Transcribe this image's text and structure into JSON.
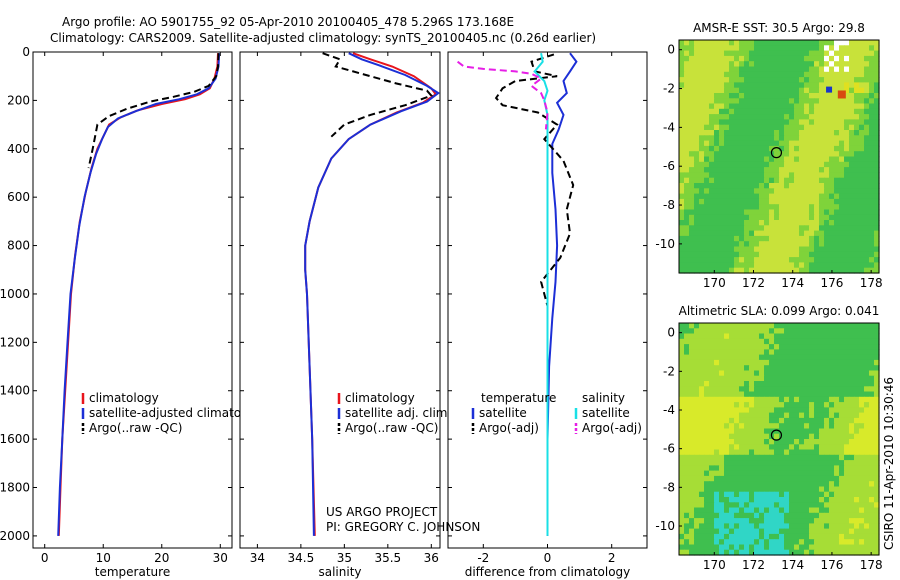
{
  "header": {
    "line1": "Argo profile: AO 5901755_92 05-Apr-2010 20100405_478 5.296S 173.168E",
    "line2": "Climatology: CARS2009. Satellite-adjusted climatology: synTS_20100405.nc (0.26d earlier)"
  },
  "footer": {
    "project": "US ARGO PROJECT",
    "pi": "PI: GREGORY C. JOHNSON",
    "stamp": "CSIRO 11-Apr-2010 10:30:46"
  },
  "colors": {
    "climatology": "#e8141c",
    "satellite": "#1c2fd6",
    "argo": "#000000",
    "sal_satellite": "#19e0e6",
    "sal_argo": "#e61ee6"
  },
  "chart_data": [
    {
      "type": "line",
      "id": "temperature",
      "xlabel": "temperature",
      "ylabel": "",
      "xlim": [
        -2,
        32
      ],
      "ylim": [
        2050,
        0
      ],
      "y_reversed": true,
      "xticks": [
        0,
        10,
        20,
        30
      ],
      "yticks": [
        0,
        200,
        400,
        600,
        800,
        1000,
        1200,
        1400,
        1600,
        1800,
        2000
      ],
      "legend": {
        "placement": "bottom-right",
        "entries": [
          "climatology",
          "satellite-adjusted climatology",
          "Argo(..raw -QC)"
        ]
      },
      "series": [
        {
          "name": "climatology",
          "color_key": "climatology",
          "dash": false,
          "points": [
            [
              29.6,
              5
            ],
            [
              29.5,
              60
            ],
            [
              29.0,
              110
            ],
            [
              28.2,
              150
            ],
            [
              26.5,
              175
            ],
            [
              24.0,
              195
            ],
            [
              20.0,
              215
            ],
            [
              16.0,
              240
            ],
            [
              13.0,
              270
            ],
            [
              11.0,
              300
            ],
            [
              10.0,
              350
            ],
            [
              9.0,
              400
            ],
            [
              8.0,
              480
            ],
            [
              7.0,
              580
            ],
            [
              6.0,
              700
            ],
            [
              5.2,
              840
            ],
            [
              4.5,
              1000
            ],
            [
              4.0,
              1200
            ],
            [
              3.5,
              1400
            ],
            [
              3.0,
              1600
            ],
            [
              2.7,
              1800
            ],
            [
              2.4,
              2000
            ]
          ]
        },
        {
          "name": "satellite-adjusted climatology",
          "color_key": "satellite",
          "dash": false,
          "points": [
            [
              29.8,
              5
            ],
            [
              29.7,
              60
            ],
            [
              29.2,
              110
            ],
            [
              28.0,
              150
            ],
            [
              26.0,
              175
            ],
            [
              23.0,
              195
            ],
            [
              19.0,
              215
            ],
            [
              15.5,
              245
            ],
            [
              12.5,
              275
            ],
            [
              10.8,
              310
            ],
            [
              9.8,
              360
            ],
            [
              8.8,
              420
            ],
            [
              7.8,
              500
            ],
            [
              6.8,
              600
            ],
            [
              5.9,
              720
            ],
            [
              5.1,
              860
            ],
            [
              4.4,
              1000
            ],
            [
              3.9,
              1200
            ],
            [
              3.4,
              1400
            ],
            [
              3.0,
              1600
            ],
            [
              2.6,
              1800
            ],
            [
              2.3,
              2000
            ]
          ]
        },
        {
          "name": "Argo(..raw -QC)",
          "color_key": "argo",
          "dash": true,
          "points": [
            [
              29.7,
              5
            ],
            [
              29.6,
              60
            ],
            [
              29.3,
              100
            ],
            [
              28.0,
              140
            ],
            [
              25.5,
              165
            ],
            [
              22.0,
              185
            ],
            [
              18.0,
              205
            ],
            [
              14.0,
              235
            ],
            [
              11.0,
              265
            ],
            [
              9.0,
              300
            ],
            [
              8.2,
              400
            ],
            [
              7.5,
              480
            ]
          ]
        }
      ]
    },
    {
      "type": "line",
      "id": "salinity",
      "xlabel": "salinity",
      "ylabel": "",
      "xlim": [
        33.8,
        36.1
      ],
      "ylim": [
        2050,
        0
      ],
      "y_reversed": true,
      "xticks": [
        34,
        34.5,
        35,
        35.5,
        36
      ],
      "legend": {
        "placement": "bottom-right",
        "entries": [
          "climatology",
          "satellite adj. clim.",
          "Argo(..raw -QC)"
        ]
      },
      "series": [
        {
          "name": "climatology",
          "color_key": "climatology",
          "dash": false,
          "points": [
            [
              35.1,
              5
            ],
            [
              35.3,
              30
            ],
            [
              35.55,
              60
            ],
            [
              35.8,
              100
            ],
            [
              36.0,
              150
            ],
            [
              36.05,
              175
            ],
            [
              35.9,
              210
            ],
            [
              35.6,
              250
            ],
            [
              35.3,
              300
            ],
            [
              35.05,
              360
            ],
            [
              34.85,
              440
            ],
            [
              34.7,
              560
            ],
            [
              34.6,
              700
            ],
            [
              34.55,
              800
            ],
            [
              34.55,
              900
            ],
            [
              34.57,
              1000
            ],
            [
              34.6,
              1300
            ],
            [
              34.63,
              1600
            ],
            [
              34.66,
              2000
            ]
          ]
        },
        {
          "name": "satellite adj. clim.",
          "color_key": "satellite",
          "dash": false,
          "points": [
            [
              35.05,
              5
            ],
            [
              35.2,
              30
            ],
            [
              35.4,
              55
            ],
            [
              35.7,
              95
            ],
            [
              35.95,
              140
            ],
            [
              36.08,
              170
            ],
            [
              35.95,
              205
            ],
            [
              35.65,
              245
            ],
            [
              35.3,
              300
            ],
            [
              35.05,
              360
            ],
            [
              34.85,
              440
            ],
            [
              34.7,
              560
            ],
            [
              34.6,
              700
            ],
            [
              34.55,
              800
            ],
            [
              34.55,
              900
            ],
            [
              34.57,
              1000
            ],
            [
              34.6,
              1300
            ],
            [
              34.63,
              1600
            ],
            [
              34.65,
              2000
            ]
          ]
        },
        {
          "name": "Argo(..raw -QC)",
          "color_key": "argo",
          "dash": true,
          "points": [
            [
              34.75,
              5
            ],
            [
              34.95,
              30
            ],
            [
              34.9,
              60
            ],
            [
              35.2,
              90
            ],
            [
              35.6,
              130
            ],
            [
              35.95,
              160
            ],
            [
              36.0,
              180
            ],
            [
              35.7,
              220
            ],
            [
              35.3,
              260
            ],
            [
              35.0,
              300
            ],
            [
              34.85,
              350
            ]
          ]
        }
      ]
    },
    {
      "type": "line",
      "id": "difference",
      "xlabel": "difference from climatology",
      "ylabel": "",
      "xlim": [
        -3.1,
        3.1
      ],
      "ylim": [
        2050,
        0
      ],
      "y_reversed": true,
      "xticks": [
        -2,
        0,
        2
      ],
      "legend": {
        "placement": "bottom",
        "headers": [
          "temperature",
          "salinity"
        ],
        "entries": [
          "satellite",
          "Argo(-adj)",
          "satellite",
          "Argo(-adj)"
        ]
      },
      "series": [
        {
          "name": "temperature satellite",
          "color_key": "satellite",
          "dash": false,
          "points": [
            [
              0.7,
              5
            ],
            [
              0.9,
              40
            ],
            [
              0.7,
              80
            ],
            [
              0.5,
              120
            ],
            [
              0.6,
              170
            ],
            [
              0.3,
              210
            ],
            [
              0.5,
              260
            ],
            [
              0.35,
              320
            ],
            [
              0.15,
              380
            ],
            [
              0.15,
              500
            ],
            [
              0.25,
              650
            ],
            [
              0.3,
              800
            ],
            [
              0.25,
              950
            ],
            [
              0.15,
              1100
            ],
            [
              0.05,
              1300
            ],
            [
              0.0,
              1600
            ],
            [
              0.0,
              2000
            ]
          ]
        },
        {
          "name": "temperature Argo(-adj)",
          "color_key": "argo",
          "dash": true,
          "points": [
            [
              0.2,
              10
            ],
            [
              -0.5,
              40
            ],
            [
              -0.4,
              80
            ],
            [
              0.3,
              100
            ],
            [
              -1.0,
              120
            ],
            [
              -1.4,
              150
            ],
            [
              -1.6,
              190
            ],
            [
              -1.4,
              220
            ],
            [
              -0.3,
              250
            ],
            [
              0.3,
              300
            ],
            [
              -0.1,
              360
            ],
            [
              0.5,
              450
            ],
            [
              0.8,
              550
            ],
            [
              0.6,
              650
            ],
            [
              0.7,
              750
            ],
            [
              0.4,
              850
            ],
            [
              -0.2,
              950
            ],
            [
              -0.1,
              1000
            ],
            [
              0.0,
              1050
            ]
          ]
        },
        {
          "name": "salinity satellite",
          "color_key": "sal_satellite",
          "dash": false,
          "points": [
            [
              -0.2,
              5
            ],
            [
              -0.15,
              40
            ],
            [
              -0.4,
              80
            ],
            [
              -0.1,
              120
            ],
            [
              0.0,
              160
            ],
            [
              -0.1,
              200
            ],
            [
              0.0,
              260
            ],
            [
              0.0,
              400
            ],
            [
              0.0,
              600
            ],
            [
              0.0,
              1000
            ],
            [
              0.0,
              1400
            ],
            [
              0.0,
              2000
            ]
          ]
        },
        {
          "name": "salinity Argo(-adj)",
          "color_key": "sal_argo",
          "dash": true,
          "points": [
            [
              -2.8,
              40
            ],
            [
              -2.6,
              60
            ],
            [
              -2.0,
              70
            ],
            [
              -1.0,
              80
            ],
            [
              -0.5,
              90
            ],
            [
              -0.2,
              110
            ],
            [
              -0.5,
              140
            ],
            [
              -0.2,
              170
            ],
            [
              -0.1,
              200
            ],
            [
              0.0,
              250
            ],
            [
              -0.05,
              320
            ]
          ]
        }
      ]
    },
    {
      "type": "heatmap",
      "id": "sst_map",
      "title": "AMSR-E SST: 30.5 Argo: 29.8",
      "xlim": [
        168.2,
        178.4
      ],
      "ylim": [
        -11.5,
        0.5
      ],
      "xticks": [
        170,
        172,
        174,
        176,
        178
      ],
      "yticks": [
        0,
        -2,
        -4,
        -6,
        -8,
        -10
      ],
      "marker": {
        "lon": 173.17,
        "lat": -5.3
      }
    },
    {
      "type": "heatmap",
      "id": "sla_map",
      "title": "Altimetric SLA: 0.099 Argo: 0.041",
      "xlim": [
        168.2,
        178.4
      ],
      "ylim": [
        -11.5,
        0.5
      ],
      "xticks": [
        170,
        172,
        174,
        176,
        178
      ],
      "yticks": [
        0,
        -2,
        -4,
        -6,
        -8,
        -10
      ],
      "marker": {
        "lon": 173.17,
        "lat": -5.3
      }
    }
  ]
}
